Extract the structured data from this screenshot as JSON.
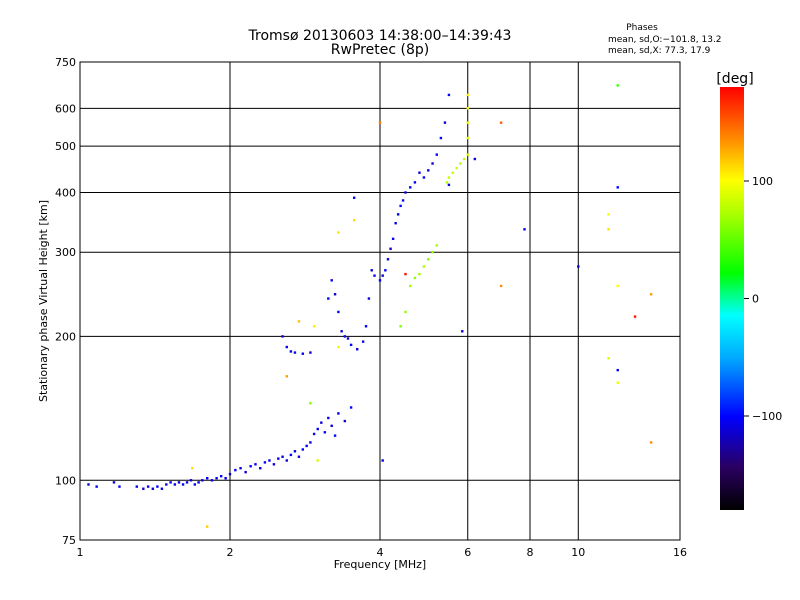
{
  "chart_data": {
    "type": "scatter",
    "title": "Tromsø 20130603 14:38:00–14:39:43",
    "subtitle": "RwPretec (8p)",
    "xlabel": "Frequency [MHz]",
    "ylabel": "Stationary phase Virtual Height [km]",
    "x_scale": "log",
    "y_scale": "log",
    "xlim": [
      1,
      16
    ],
    "ylim": [
      75,
      750
    ],
    "grid": true,
    "x_ticks": [
      1,
      2,
      4,
      6,
      8,
      10,
      16
    ],
    "x_tick_labels": [
      "1",
      "2",
      "4",
      "6",
      "8",
      "10",
      "16"
    ],
    "y_ticks": [
      75,
      100,
      200,
      300,
      400,
      500,
      600,
      750
    ],
    "y_tick_labels": [
      "75",
      "100",
      "200",
      "300",
      "400",
      "500",
      "600",
      "750"
    ],
    "phase_stats": {
      "heading": "Phases",
      "line_o": "mean, sd,O:−101.8, 13.2",
      "line_x": "mean, sd,X:  77.3, 17.9"
    },
    "colorbar": {
      "label": "[deg]",
      "range": [
        -180,
        180
      ],
      "ticks": [
        100,
        0,
        -100
      ],
      "tick_labels": [
        "100",
        "0",
        "−100"
      ],
      "colormap": "rainbow"
    },
    "series": [
      {
        "points": [
          [
            1.04,
            98,
            -110
          ],
          [
            1.08,
            97,
            -105
          ],
          [
            1.17,
            99,
            -112
          ],
          [
            1.2,
            97,
            -108
          ],
          [
            1.3,
            97,
            -100
          ],
          [
            1.34,
            96,
            -115
          ],
          [
            1.37,
            97,
            -105
          ],
          [
            1.4,
            96,
            -110
          ],
          [
            1.43,
            97,
            -100
          ],
          [
            1.46,
            96,
            -108
          ],
          [
            1.49,
            98,
            -112
          ],
          [
            1.52,
            99,
            -100
          ],
          [
            1.55,
            98,
            -105
          ],
          [
            1.58,
            99,
            -110
          ],
          [
            1.61,
            98,
            -100
          ],
          [
            1.64,
            99,
            -108
          ],
          [
            1.67,
            100,
            -112
          ],
          [
            1.7,
            98,
            -100
          ],
          [
            1.73,
            99,
            -105
          ],
          [
            1.76,
            100,
            -110
          ],
          [
            1.8,
            101,
            -100
          ],
          [
            1.84,
            100,
            -108
          ],
          [
            1.88,
            101,
            -112
          ],
          [
            1.92,
            102,
            -100
          ],
          [
            1.96,
            101,
            -105
          ],
          [
            2.0,
            103,
            -110
          ],
          [
            2.05,
            105,
            -100
          ],
          [
            2.1,
            106,
            -108
          ],
          [
            2.15,
            104,
            -112
          ],
          [
            2.2,
            107,
            -100
          ],
          [
            2.25,
            108,
            -105
          ],
          [
            2.3,
            106,
            -110
          ],
          [
            2.35,
            109,
            -100
          ],
          [
            2.4,
            110,
            -108
          ],
          [
            2.45,
            108,
            -112
          ],
          [
            2.5,
            111,
            -100
          ],
          [
            2.55,
            112,
            -105
          ],
          [
            2.6,
            110,
            -110
          ],
          [
            2.65,
            113,
            -100
          ],
          [
            2.7,
            115,
            -108
          ],
          [
            2.75,
            112,
            -112
          ],
          [
            2.8,
            116,
            -100
          ],
          [
            2.85,
            118,
            -105
          ],
          [
            2.9,
            120,
            -110
          ],
          [
            2.95,
            125,
            -100
          ],
          [
            3.0,
            128,
            -108
          ],
          [
            3.05,
            132,
            -112
          ],
          [
            3.1,
            126,
            -100
          ],
          [
            3.15,
            135,
            -105
          ],
          [
            3.2,
            130,
            -110
          ],
          [
            3.25,
            124,
            -100
          ],
          [
            3.3,
            138,
            -108
          ],
          [
            3.4,
            133,
            -112
          ],
          [
            3.5,
            142,
            -100
          ],
          [
            2.55,
            200,
            -110
          ],
          [
            2.6,
            190,
            -105
          ],
          [
            2.65,
            186,
            -112
          ],
          [
            2.7,
            185,
            -100
          ],
          [
            2.8,
            184,
            -108
          ],
          [
            2.9,
            185,
            -110
          ],
          [
            3.15,
            240,
            -100
          ],
          [
            3.2,
            262,
            -108
          ],
          [
            3.25,
            245,
            -112
          ],
          [
            3.3,
            225,
            -100
          ],
          [
            3.35,
            205,
            -110
          ],
          [
            3.4,
            200,
            -105
          ],
          [
            3.45,
            198,
            -112
          ],
          [
            3.5,
            192,
            -100
          ],
          [
            3.6,
            188,
            -108
          ],
          [
            3.7,
            195,
            -110
          ],
          [
            3.75,
            210,
            -100
          ],
          [
            3.8,
            240,
            -108
          ],
          [
            3.85,
            275,
            -112
          ],
          [
            3.9,
            268,
            -100
          ],
          [
            4.0,
            262,
            -105
          ],
          [
            4.05,
            268,
            -110
          ],
          [
            4.1,
            275,
            -100
          ],
          [
            4.15,
            290,
            -108
          ],
          [
            4.2,
            305,
            -112
          ],
          [
            4.25,
            320,
            -100
          ],
          [
            4.3,
            345,
            -105
          ],
          [
            4.35,
            360,
            -110
          ],
          [
            4.4,
            375,
            -100
          ],
          [
            4.45,
            385,
            -108
          ],
          [
            4.5,
            400,
            -112
          ],
          [
            4.6,
            410,
            -100
          ],
          [
            4.7,
            420,
            -105
          ],
          [
            4.8,
            440,
            -110
          ],
          [
            4.9,
            430,
            -100
          ],
          [
            5.0,
            445,
            -108
          ],
          [
            5.1,
            460,
            -112
          ],
          [
            5.2,
            480,
            -100
          ],
          [
            5.3,
            520,
            -105
          ],
          [
            5.4,
            560,
            -110
          ],
          [
            5.5,
            640,
            -100
          ],
          [
            5.5,
            415,
            -112
          ],
          [
            6.2,
            470,
            -110
          ],
          [
            7.8,
            335,
            -105
          ],
          [
            10.0,
            280,
            -110
          ],
          [
            12.0,
            410,
            -100
          ],
          [
            12.0,
            170,
            -108
          ],
          [
            5.85,
            205,
            -112
          ],
          [
            3.55,
            390,
            -100
          ],
          [
            4.05,
            110,
            -105
          ]
        ]
      },
      {
        "points": [
          [
            4.4,
            210,
            60
          ],
          [
            4.5,
            225,
            65
          ],
          [
            4.6,
            255,
            70
          ],
          [
            4.7,
            265,
            62
          ],
          [
            4.8,
            270,
            68
          ],
          [
            4.9,
            280,
            72
          ],
          [
            5.0,
            290,
            60
          ],
          [
            5.1,
            300,
            66
          ],
          [
            5.2,
            310,
            70
          ],
          [
            5.45,
            420,
            75
          ],
          [
            5.5,
            430,
            80
          ],
          [
            5.6,
            440,
            78
          ],
          [
            5.7,
            450,
            82
          ],
          [
            5.8,
            460,
            75
          ],
          [
            5.9,
            470,
            80
          ],
          [
            6.0,
            480,
            85
          ],
          [
            6.0,
            520,
            90
          ],
          [
            6.0,
            560,
            95
          ],
          [
            6.0,
            600,
            100
          ],
          [
            6.0,
            640,
            105
          ],
          [
            3.3,
            330,
            110
          ],
          [
            3.3,
            190,
            95
          ],
          [
            2.9,
            145,
            60
          ],
          [
            3.0,
            110,
            85
          ],
          [
            1.68,
            106,
            110
          ],
          [
            1.8,
            80,
            115
          ],
          [
            2.6,
            165,
            130
          ],
          [
            2.75,
            215,
            120
          ],
          [
            2.95,
            210,
            105
          ],
          [
            4.0,
            560,
            140
          ],
          [
            4.5,
            270,
            175
          ],
          [
            7.0,
            560,
            150
          ],
          [
            7.0,
            255,
            135
          ],
          [
            11.5,
            360,
            95
          ],
          [
            11.5,
            335,
            110
          ],
          [
            11.5,
            180,
            90
          ],
          [
            12.0,
            255,
            100
          ],
          [
            12.0,
            160,
            95
          ],
          [
            12.0,
            670,
            40
          ],
          [
            13.0,
            220,
            175
          ],
          [
            14.0,
            245,
            130
          ],
          [
            14.0,
            120,
            135
          ],
          [
            3.55,
            350,
            110
          ]
        ]
      }
    ]
  }
}
